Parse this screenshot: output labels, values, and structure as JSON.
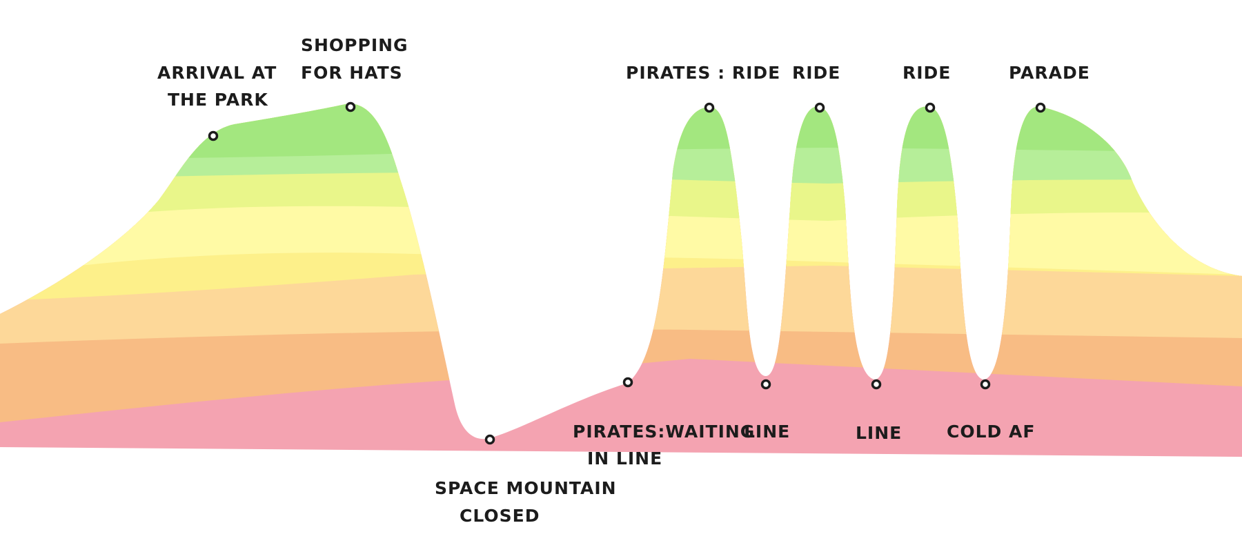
{
  "band_colors": [
    "#f4a3b1",
    "#f8bc84",
    "#fdd899",
    "#fdf08a",
    "#fffaa5",
    "#e9f68a",
    "#b6ee99",
    "#a3e77f"
  ],
  "labels": {
    "arrival_line1": "ARRIVAL AT",
    "arrival_line2": "THE PARK",
    "shopping_line1": "SHOPPING",
    "shopping_line2": "FOR HATS",
    "space_line1": "SPACE MOUNTAIN",
    "space_line2": "CLOSED",
    "pirates_wait_line1": "PIRATES:WAITING",
    "pirates_wait_line2": "IN LINE",
    "pirates_ride": "PIRATES : RIDE",
    "line_1": "LINE",
    "ride_2": "RIDE",
    "line_2": "LINE",
    "ride_3": "RIDE",
    "cold": "COLD AF",
    "parade": "PARADE"
  }
}
